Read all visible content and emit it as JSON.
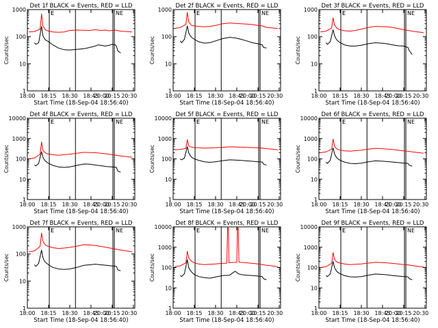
{
  "start_time_label": "Start Time (18-Sep-04 18:56:40)",
  "ylabel": "Counts/sec",
  "x_ticks": [
    "18:00",
    "18:15",
    "18:30",
    "18:45",
    "20:00",
    "20:15",
    "20:30"
  ],
  "y_ticks": [
    "1",
    "10",
    "100",
    "1000",
    "10000"
  ],
  "marker_letters": {
    "start": "E",
    "mid": "F",
    "end_a": "N",
    "end_b": "E"
  },
  "colors": {
    "events": "#000000",
    "lld": "#ff0000"
  },
  "chart_data": [
    {
      "type": "line",
      "title": "Det 1f BLACK = Events, RED = LLD",
      "ylim": [
        1,
        1000
      ],
      "log_y": true,
      "series": [
        {
          "color": "#ff0000",
          "x": [
            1,
            5,
            9,
            10,
            11,
            12,
            13,
            15,
            18,
            22,
            26,
            30,
            35,
            40,
            44,
            48,
            50,
            52,
            55,
            58,
            60,
            62,
            63,
            66,
            70,
            74
          ],
          "y": [
            150,
            155,
            190,
            700,
            250,
            200,
            175,
            160,
            150,
            145,
            150,
            170,
            175,
            172,
            170,
            180,
            175,
            170,
            175,
            165,
            170,
            175,
            170,
            160,
            155,
            150
          ]
        },
        {
          "color": "#000000",
          "x": [
            5,
            6,
            8,
            10,
            11,
            12,
            13,
            15,
            18,
            22,
            26,
            30,
            35,
            40,
            44,
            48,
            50,
            52,
            55,
            58,
            60,
            62,
            63,
            64,
            66
          ],
          "y": [
            60,
            52,
            60,
            240,
            110,
            85,
            75,
            65,
            50,
            38,
            33,
            32,
            34,
            36,
            40,
            45,
            50,
            48,
            45,
            48,
            52,
            50,
            45,
            30,
            25
          ]
        }
      ]
    },
    {
      "type": "line",
      "title": "Det 2f BLACK = Events, RED = LLD",
      "ylim": [
        1,
        1000
      ],
      "log_y": true,
      "series": [
        {
          "color": "#ff0000",
          "x": [
            1,
            5,
            9,
            10,
            11,
            12,
            13,
            15,
            18,
            22,
            26,
            30,
            35,
            40,
            44,
            48,
            52,
            56,
            60,
            63,
            66,
            70,
            74
          ],
          "y": [
            200,
            220,
            280,
            800,
            350,
            300,
            260,
            250,
            240,
            230,
            240,
            260,
            300,
            320,
            310,
            300,
            290,
            280,
            260,
            250,
            220,
            210,
            200
          ]
        },
        {
          "color": "#000000",
          "x": [
            5,
            6,
            8,
            10,
            11,
            12,
            13,
            15,
            18,
            22,
            26,
            30,
            35,
            40,
            44,
            48,
            52,
            56,
            60,
            63,
            64,
            66
          ],
          "y": [
            70,
            60,
            80,
            250,
            140,
            110,
            95,
            80,
            65,
            58,
            60,
            70,
            85,
            95,
            90,
            80,
            70,
            60,
            55,
            50,
            40,
            38
          ]
        }
      ]
    },
    {
      "type": "line",
      "title": "Det 3f BLACK = Events, RED = LLD",
      "ylim": [
        1,
        1000
      ],
      "log_y": true,
      "series": [
        {
          "color": "#ff0000",
          "x": [
            1,
            5,
            9,
            10,
            11,
            12,
            13,
            15,
            18,
            22,
            26,
            30,
            35,
            40,
            44,
            48,
            52,
            56,
            60,
            63,
            66,
            70,
            74
          ],
          "y": [
            150,
            160,
            210,
            500,
            270,
            230,
            200,
            180,
            165,
            160,
            170,
            190,
            220,
            240,
            235,
            230,
            220,
            200,
            180,
            170,
            160,
            150,
            140
          ]
        },
        {
          "color": "#000000",
          "x": [
            5,
            6,
            8,
            10,
            11,
            12,
            13,
            15,
            18,
            22,
            26,
            30,
            35,
            40,
            44,
            48,
            52,
            56,
            60,
            63,
            64,
            66
          ],
          "y": [
            60,
            52,
            65,
            180,
            110,
            85,
            72,
            60,
            50,
            45,
            45,
            48,
            55,
            60,
            58,
            55,
            50,
            46,
            45,
            40,
            30,
            22
          ]
        }
      ]
    },
    {
      "type": "line",
      "title": "Det 4f BLACK = Events, RED = LLD",
      "ylim": [
        1,
        10000
      ],
      "log_y": true,
      "series": [
        {
          "color": "#ff0000",
          "x": [
            1,
            5,
            9,
            10,
            11,
            12,
            13,
            15,
            18,
            22,
            26,
            30,
            35,
            40,
            44,
            48,
            52,
            56,
            60,
            63,
            66,
            70,
            74
          ],
          "y": [
            100,
            110,
            170,
            700,
            260,
            220,
            190,
            170,
            160,
            150,
            160,
            170,
            190,
            210,
            205,
            200,
            190,
            175,
            160,
            150,
            140,
            130,
            120
          ]
        },
        {
          "color": "#000000",
          "x": [
            5,
            6,
            8,
            10,
            11,
            12,
            13,
            15,
            18,
            22,
            26,
            30,
            35,
            40,
            44,
            48,
            52,
            56,
            60,
            63,
            64,
            66
          ],
          "y": [
            50,
            45,
            60,
            230,
            120,
            90,
            75,
            60,
            48,
            40,
            38,
            40,
            48,
            56,
            55,
            50,
            46,
            42,
            40,
            38,
            25,
            22
          ]
        }
      ]
    },
    {
      "type": "line",
      "title": "Det 5f BLACK = Events, RED = LLD",
      "ylim": [
        1,
        10000
      ],
      "log_y": true,
      "series": [
        {
          "color": "#ff0000",
          "x": [
            1,
            5,
            9,
            10,
            11,
            12,
            13,
            15,
            18,
            22,
            26,
            30,
            35,
            40,
            44,
            48,
            52,
            56,
            60,
            63,
            66,
            70,
            74
          ],
          "y": [
            280,
            290,
            330,
            900,
            450,
            400,
            380,
            360,
            350,
            340,
            345,
            355,
            370,
            390,
            385,
            375,
            370,
            360,
            350,
            340,
            320,
            300,
            280
          ]
        },
        {
          "color": "#000000",
          "x": [
            5,
            6,
            8,
            10,
            11,
            12,
            13,
            15,
            18,
            22,
            26,
            30,
            35,
            40,
            44,
            48,
            52,
            56,
            60,
            63,
            64,
            66
          ],
          "y": [
            100,
            90,
            110,
            400,
            200,
            150,
            120,
            100,
            85,
            72,
            68,
            72,
            82,
            90,
            88,
            84,
            80,
            76,
            72,
            70,
            55,
            50
          ]
        }
      ]
    },
    {
      "type": "line",
      "title": "Det 6f BLACK = Events, RED = LLD",
      "ylim": [
        1,
        10000
      ],
      "log_y": true,
      "series": [
        {
          "color": "#ff0000",
          "x": [
            1,
            5,
            9,
            10,
            11,
            12,
            13,
            15,
            18,
            22,
            26,
            30,
            35,
            40,
            44,
            48,
            52,
            56,
            60,
            63,
            66,
            70,
            74
          ],
          "y": [
            200,
            220,
            300,
            950,
            420,
            340,
            300,
            270,
            250,
            240,
            255,
            270,
            300,
            330,
            320,
            305,
            290,
            270,
            250,
            240,
            220,
            205,
            190
          ]
        },
        {
          "color": "#000000",
          "x": [
            5,
            6,
            8,
            10,
            11,
            12,
            13,
            15,
            18,
            22,
            26,
            30,
            35,
            40,
            44,
            48,
            52,
            56,
            60,
            63,
            64,
            66
          ],
          "y": [
            70,
            60,
            85,
            350,
            180,
            130,
            105,
            85,
            70,
            60,
            58,
            62,
            72,
            80,
            78,
            74,
            70,
            66,
            62,
            60,
            48,
            44
          ]
        }
      ]
    },
    {
      "type": "line",
      "title": "Det 7f BLACK = Events, RED = LLD",
      "ylim": [
        1,
        1000
      ],
      "log_y": true,
      "series": [
        {
          "color": "#ff0000",
          "x": [
            1,
            5,
            9,
            10,
            11,
            12,
            13,
            15,
            18,
            22,
            26,
            30,
            35,
            40,
            44,
            48,
            52,
            56,
            60,
            63,
            66,
            70,
            74
          ],
          "y": [
            120,
            130,
            190,
            600,
            300,
            240,
            210,
            190,
            170,
            160,
            165,
            175,
            195,
            220,
            215,
            205,
            190,
            175,
            160,
            150,
            140,
            130,
            120
          ]
        },
        {
          "color": "#000000",
          "x": [
            5,
            6,
            8,
            10,
            11,
            12,
            13,
            15,
            18,
            22,
            26,
            30,
            35,
            40,
            44,
            48,
            52,
            56,
            60,
            63,
            64,
            66
          ],
          "y": [
            40,
            35,
            45,
            140,
            75,
            55,
            48,
            40,
            32,
            28,
            27,
            28,
            32,
            38,
            40,
            42,
            40,
            38,
            36,
            35,
            26,
            24
          ]
        }
      ]
    },
    {
      "type": "line",
      "title": "Det 8f BLACK = Events, RED = LLD",
      "ylim": [
        1,
        10000
      ],
      "log_y": true,
      "series": [
        {
          "color": "#ff0000",
          "x": [
            1,
            5,
            9,
            10,
            11,
            12,
            13,
            15,
            18,
            22,
            26,
            30,
            35,
            38,
            38.5,
            39,
            39.5,
            40,
            44,
            45,
            45.5,
            46,
            46.5,
            47,
            48,
            52,
            56,
            60,
            63,
            66,
            70,
            74
          ],
          "y": [
            110,
            120,
            170,
            650,
            300,
            240,
            200,
            170,
            150,
            140,
            145,
            150,
            160,
            165,
            10000,
            10000,
            170,
            175,
            180,
            180,
            10000,
            10000,
            190,
            185,
            180,
            170,
            160,
            150,
            140,
            130,
            120,
            110
          ]
        },
        {
          "color": "#000000",
          "x": [
            5,
            6,
            8,
            10,
            11,
            12,
            13,
            15,
            18,
            22,
            26,
            30,
            35,
            40,
            43,
            44,
            46,
            48,
            52,
            56,
            60,
            63,
            64,
            66
          ],
          "y": [
            40,
            36,
            50,
            250,
            100,
            75,
            60,
            45,
            36,
            32,
            30,
            34,
            40,
            42,
            60,
            65,
            50,
            45,
            42,
            40,
            38,
            36,
            28,
            25
          ]
        }
      ]
    },
    {
      "type": "line",
      "title": "Det 9f BLACK = Events, RED = LLD",
      "ylim": [
        1,
        10000
      ],
      "log_y": true,
      "series": [
        {
          "color": "#ff0000",
          "x": [
            1,
            5,
            9,
            10,
            11,
            12,
            13,
            15,
            18,
            22,
            26,
            30,
            35,
            40,
            44,
            48,
            52,
            56,
            60,
            63,
            66,
            70,
            74
          ],
          "y": [
            100,
            110,
            160,
            550,
            260,
            210,
            180,
            165,
            150,
            140,
            145,
            150,
            165,
            180,
            175,
            170,
            160,
            150,
            140,
            135,
            125,
            115,
            105
          ]
        },
        {
          "color": "#000000",
          "x": [
            5,
            6,
            8,
            10,
            11,
            12,
            13,
            15,
            18,
            22,
            26,
            30,
            35,
            40,
            44,
            48,
            52,
            56,
            60,
            63,
            64,
            66
          ],
          "y": [
            40,
            36,
            48,
            200,
            100,
            75,
            60,
            50,
            40,
            35,
            34,
            36,
            42,
            48,
            46,
            44,
            40,
            38,
            36,
            35,
            28,
            25
          ]
        }
      ]
    }
  ]
}
